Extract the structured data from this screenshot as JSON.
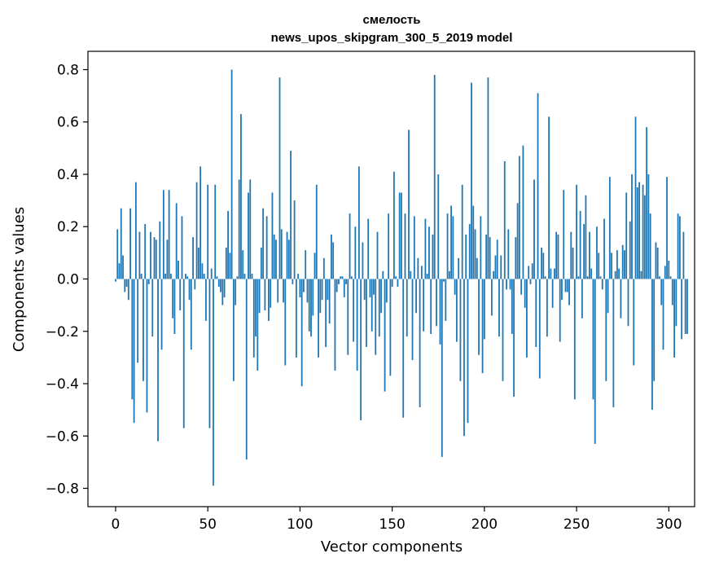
{
  "chart_data": {
    "type": "bar",
    "title": "смелость",
    "subtitle": "news_upos_skipgram_300_5_2019 model",
    "xlabel": "Vector components",
    "ylabel": "Components values",
    "xlim": [
      -15,
      314
    ],
    "ylim": [
      -0.87,
      0.87
    ],
    "xticks": [
      0,
      50,
      100,
      150,
      200,
      250,
      300
    ],
    "xtick_labels": [
      "0",
      "50",
      "100",
      "150",
      "200",
      "250",
      "300"
    ],
    "yticks": [
      -0.8,
      -0.6,
      -0.4,
      -0.2,
      0.0,
      0.2,
      0.4,
      0.6,
      0.8
    ],
    "ytick_labels": [
      "−0.8",
      "−0.6",
      "−0.4",
      "−0.2",
      "0.0",
      "0.2",
      "0.4",
      "0.6",
      "0.8"
    ],
    "bar_color": "#1f77b4",
    "grid": false,
    "series": [
      {
        "values": [
          -0.01,
          0.19,
          0.06,
          0.27,
          0.09,
          -0.05,
          -0.03,
          -0.08,
          0.27,
          -0.46,
          -0.55,
          0.37,
          -0.32,
          0.18,
          0.02,
          -0.39,
          0.21,
          -0.51,
          -0.02,
          0.18,
          -0.22,
          0.16,
          0.15,
          -0.62,
          0.22,
          -0.27,
          0.34,
          0.02,
          0.15,
          0.34,
          0.02,
          -0.15,
          -0.21,
          0.29,
          0.07,
          -0.12,
          0.24,
          -0.57,
          0.02,
          0.01,
          -0.08,
          -0.27,
          0.16,
          -0.04,
          0.37,
          0.12,
          0.43,
          0.06,
          0.02,
          -0.16,
          0.36,
          -0.57,
          0.04,
          -0.79,
          0.36,
          0.01,
          -0.03,
          -0.05,
          -0.1,
          -0.07,
          0.12,
          0.26,
          0.1,
          0.8,
          -0.39,
          -0.1,
          0.01,
          0.38,
          0.63,
          0.11,
          0.02,
          -0.69,
          0.33,
          0.38,
          0.02,
          -0.3,
          -0.22,
          -0.35,
          -0.13,
          0.12,
          0.27,
          -0.12,
          0.24,
          -0.16,
          -0.11,
          0.33,
          0.17,
          0.15,
          -0.09,
          0.77,
          0.19,
          -0.09,
          -0.33,
          0.18,
          0.15,
          0.49,
          -0.02,
          0.3,
          -0.3,
          0.02,
          -0.07,
          -0.41,
          -0.05,
          0.11,
          -0.09,
          -0.2,
          -0.22,
          -0.14,
          0.1,
          0.36,
          -0.3,
          -0.13,
          -0.08,
          0.08,
          -0.26,
          -0.08,
          -0.17,
          0.17,
          0.14,
          -0.35,
          -0.05,
          -0.02,
          0.01,
          0.01,
          -0.07,
          -0.02,
          -0.29,
          0.25,
          0.01,
          -0.24,
          0.2,
          -0.35,
          0.43,
          -0.54,
          0.14,
          -0.08,
          -0.26,
          0.23,
          -0.07,
          -0.2,
          -0.06,
          -0.29,
          0.18,
          -0.22,
          -0.13,
          0.03,
          -0.43,
          -0.09,
          0.25,
          -0.37,
          -0.03,
          0.41,
          0.01,
          -0.03,
          0.33,
          0.33,
          -0.53,
          0.25,
          -0.22,
          0.57,
          0.03,
          -0.31,
          0.24,
          -0.13,
          0.08,
          -0.49,
          0.05,
          -0.2,
          0.23,
          0.02,
          0.2,
          -0.21,
          0.17,
          0.78,
          -0.18,
          0.4,
          -0.25,
          -0.68,
          -0.01,
          -0.16,
          0.25,
          0.03,
          0.28,
          0.24,
          -0.06,
          -0.24,
          0.08,
          -0.39,
          0.36,
          -0.6,
          0.17,
          -0.55,
          0.21,
          0.75,
          0.28,
          0.19,
          0.08,
          -0.29,
          0.24,
          -0.36,
          -0.23,
          0.17,
          0.77,
          0.16,
          -0.14,
          0.03,
          0.09,
          0.15,
          -0.22,
          0.09,
          -0.39,
          0.45,
          -0.04,
          0.19,
          -0.04,
          -0.21,
          -0.45,
          0.16,
          0.29,
          0.47,
          -0.06,
          0.51,
          -0.11,
          -0.3,
          0.05,
          -0.02,
          0.06,
          0.38,
          -0.26,
          0.71,
          -0.38,
          0.12,
          0.1,
          0.01,
          -0.22,
          0.62,
          0.04,
          -0.11,
          0.04,
          0.18,
          0.17,
          -0.24,
          -0.08,
          0.34,
          -0.05,
          -0.05,
          -0.1,
          0.18,
          0.12,
          -0.46,
          0.36,
          0.01,
          0.26,
          -0.15,
          0.21,
          0.32,
          0.01,
          0.18,
          0.04,
          -0.46,
          -0.63,
          0.2,
          0.1,
          0.01,
          -0.04,
          0.23,
          -0.39,
          -0.13,
          0.39,
          0.1,
          -0.49,
          0.03,
          0.11,
          0.04,
          -0.15,
          0.13,
          0.11,
          0.33,
          -0.18,
          0.22,
          0.4,
          -0.33,
          0.62,
          0.35,
          0.37,
          0.03,
          0.36,
          0.32,
          0.58,
          0.4,
          0.25,
          -0.5,
          -0.39,
          0.14,
          0.12,
          0.01,
          -0.1,
          -0.27,
          0.05,
          0.39,
          0.07,
          0.01,
          -0.1,
          -0.3,
          -0.18,
          0.25,
          0.24,
          -0.23,
          0.18,
          -0.21,
          -0.21
        ]
      }
    ]
  }
}
